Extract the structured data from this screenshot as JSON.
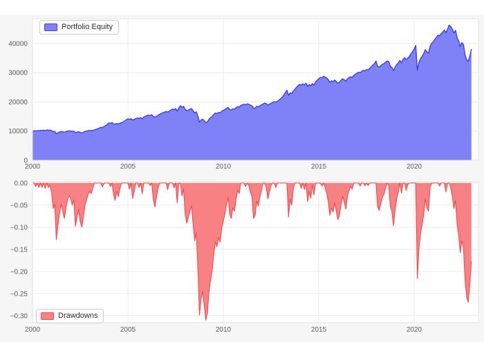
{
  "style": {
    "page_background": "#ffffff",
    "figure_background": "#f6f6f6",
    "plot_background": "#ffffff",
    "grid_color": "#e9e9e9",
    "plot_border_color": "#e3e3e3",
    "tick_label_color": "#5a5a5a"
  },
  "chart_data": [
    {
      "id": "equity",
      "type": "area",
      "title": "",
      "xlabel": "",
      "ylabel": "",
      "legend_label": "Portfolio Equity",
      "legend_position": "top_left",
      "grid": true,
      "line_color": "#3c3fe3",
      "fill_color": "#7f81f7",
      "baseline": 0,
      "x_start": 2000,
      "x_step": 0.0833333,
      "x_range": [
        2000,
        2023.37
      ],
      "y_range": [
        0,
        48500
      ],
      "x_ticks": [
        {
          "v": 2000,
          "label": "2000"
        },
        {
          "v": 2005,
          "label": "2005"
        },
        {
          "v": 2010,
          "label": "2010"
        },
        {
          "v": 2015,
          "label": "2015"
        },
        {
          "v": 2020,
          "label": "2020"
        }
      ],
      "y_ticks": [
        {
          "v": 0,
          "label": "0"
        },
        {
          "v": 10000,
          "label": "10000"
        },
        {
          "v": 20000,
          "label": "20000"
        },
        {
          "v": 30000,
          "label": "30000"
        },
        {
          "v": 40000,
          "label": "40000"
        }
      ],
      "values": [
        10000,
        10120,
        10040,
        10180,
        10080,
        10250,
        10150,
        10320,
        10200,
        10400,
        10300,
        10350,
        10180,
        9800,
        9900,
        9070,
        9400,
        9680,
        9900,
        9750,
        9570,
        9800,
        10000,
        10100,
        10050,
        9880,
        10000,
        9380,
        9600,
        9780,
        9500,
        9360,
        9600,
        9880,
        10000,
        10140,
        10200,
        10150,
        10300,
        10420,
        10600,
        10800,
        11050,
        11300,
        11200,
        11600,
        11900,
        12250,
        12800,
        12700,
        12850,
        12500,
        12350,
        12600,
        12450,
        12700,
        12900,
        13100,
        13500,
        13900,
        14200,
        14000,
        14250,
        13750,
        14000,
        14300,
        14500,
        14350,
        14600,
        14250,
        14800,
        15100,
        15300,
        15450,
        15350,
        15600,
        15000,
        14750,
        15100,
        15450,
        15750,
        16050,
        16300,
        16500,
        16750,
        16500,
        16850,
        17200,
        17550,
        17350,
        17700,
        16900,
        17900,
        18700,
        18150,
        18450,
        17400,
        17000,
        17250,
        17500,
        17750,
        16950,
        16250,
        16600,
        15100,
        13100,
        13800,
        14100,
        13500,
        12900,
        13200,
        14100,
        14600,
        15000,
        15700,
        16200,
        16000,
        16400,
        16200,
        16800,
        17100,
        17400,
        17800,
        18100,
        17400,
        17200,
        17650,
        17500,
        18000,
        18400,
        18250,
        18800,
        19000,
        19200,
        19050,
        19300,
        19200,
        18900,
        18700,
        17750,
        17900,
        18500,
        18300,
        18700,
        19000,
        19300,
        19600,
        19400,
        18900,
        19200,
        19500,
        19800,
        20100,
        19900,
        20200,
        20600,
        21100,
        21600,
        22300,
        23200,
        24000,
        22150,
        23100,
        22800,
        23700,
        24300,
        25000,
        25600,
        26000,
        25700,
        26200,
        25800,
        26400,
        25300,
        25900,
        25500,
        26300,
        25700,
        26800,
        27400,
        27900,
        28400,
        28200,
        28800,
        28500,
        28100,
        27600,
        26700,
        27200,
        26900,
        27500,
        27000,
        26400,
        26700,
        27400,
        27900,
        27600,
        27100,
        27900,
        28300,
        28600,
        28400,
        29000,
        29500,
        29800,
        30200,
        30000,
        30400,
        30800,
        30600,
        31100,
        30900,
        31500,
        32000,
        32600,
        33100,
        34000,
        32200,
        31900,
        32400,
        32900,
        33100,
        33600,
        34000,
        33800,
        32200,
        31800,
        30700,
        31900,
        32800,
        33300,
        34200,
        33400,
        34600,
        35100,
        34500,
        35000,
        35600,
        36500,
        37200,
        38100,
        39300,
        30800,
        33500,
        34800,
        35600,
        36500,
        37900,
        37100,
        36800,
        38900,
        40100,
        40600,
        41400,
        42100,
        42900,
        42600,
        43400,
        43900,
        44600,
        43700,
        44900,
        46300,
        45800,
        44900,
        43600,
        44500,
        42000,
        40800,
        39000,
        40300,
        39600,
        36100,
        34400,
        33800,
        35700,
        38100
      ]
    },
    {
      "id": "drawdowns",
      "type": "area",
      "title": "",
      "xlabel": "",
      "ylabel": "",
      "legend_label": "Drawdowns",
      "legend_position": "bottom_left",
      "grid": true,
      "line_color": "#f4494b",
      "fill_color": "#f88183",
      "baseline": 0,
      "max_drawdown": -0.31,
      "x_start": 2000,
      "x_step": 0.0833333,
      "x_range": [
        2000,
        2023.37
      ],
      "y_range": [
        -0.316,
        0.003
      ],
      "x_ticks": [
        {
          "v": 2000,
          "label": "2000"
        },
        {
          "v": 2005,
          "label": "2005"
        },
        {
          "v": 2010,
          "label": "2010"
        },
        {
          "v": 2015,
          "label": "2015"
        },
        {
          "v": 2020,
          "label": "2020"
        }
      ],
      "y_ticks": [
        {
          "v": 0,
          "label": "0.00"
        },
        {
          "v": -0.05,
          "label": "−0.05"
        },
        {
          "v": -0.1,
          "label": "−0.10"
        },
        {
          "v": -0.15,
          "label": "−0.15"
        },
        {
          "v": -0.2,
          "label": "−0.20"
        },
        {
          "v": -0.25,
          "label": "−0.25"
        },
        {
          "v": -0.3,
          "label": "−0.30"
        }
      ],
      "values": [
        0,
        0,
        -0.008,
        0,
        -0.01,
        0,
        -0.01,
        0,
        -0.012,
        0,
        -0.01,
        -0.005,
        -0.021,
        -0.058,
        -0.048,
        -0.128,
        -0.096,
        -0.069,
        -0.048,
        -0.063,
        -0.08,
        -0.058,
        -0.038,
        -0.029,
        -0.034,
        -0.05,
        -0.038,
        -0.098,
        -0.077,
        -0.06,
        -0.087,
        -0.1,
        -0.077,
        -0.05,
        -0.038,
        -0.025,
        -0.019,
        -0.024,
        -0.01,
        0,
        0,
        0,
        0,
        0,
        -0.009,
        0,
        0,
        0,
        0,
        -0.008,
        0,
        -0.027,
        -0.039,
        -0.019,
        -0.031,
        -0.012,
        0,
        0,
        0,
        0,
        0,
        -0.014,
        0,
        -0.035,
        -0.018,
        0,
        0,
        -0.01,
        0,
        -0.024,
        0,
        0,
        0,
        0,
        -0.006,
        0,
        -0.038,
        -0.054,
        -0.032,
        -0.01,
        0,
        0,
        0,
        0,
        0,
        -0.015,
        0,
        0,
        0,
        -0.011,
        0,
        -0.045,
        0,
        0,
        -0.029,
        -0.013,
        -0.07,
        -0.091,
        -0.078,
        -0.064,
        -0.051,
        -0.094,
        -0.131,
        -0.112,
        -0.193,
        -0.299,
        -0.262,
        -0.246,
        -0.278,
        -0.31,
        -0.294,
        -0.246,
        -0.219,
        -0.198,
        -0.16,
        -0.134,
        -0.144,
        -0.123,
        -0.134,
        -0.102,
        -0.086,
        -0.07,
        -0.048,
        -0.032,
        -0.07,
        -0.08,
        -0.056,
        -0.064,
        -0.037,
        -0.016,
        -0.024,
        0,
        0,
        0,
        -0.008,
        0,
        -0.005,
        -0.021,
        -0.031,
        -0.08,
        -0.073,
        -0.041,
        -0.052,
        -0.031,
        -0.016,
        0,
        0,
        -0.01,
        -0.036,
        -0.02,
        -0.005,
        0,
        0,
        -0.01,
        0,
        0,
        0,
        0,
        0,
        0,
        0,
        -0.077,
        -0.037,
        -0.05,
        -0.013,
        0,
        0,
        0,
        0,
        -0.012,
        0,
        -0.015,
        0,
        -0.042,
        -0.019,
        -0.034,
        -0.004,
        -0.027,
        0,
        0,
        0,
        0,
        -0.007,
        0,
        -0.01,
        -0.024,
        -0.042,
        -0.073,
        -0.056,
        -0.066,
        -0.045,
        -0.063,
        -0.083,
        -0.073,
        -0.049,
        -0.031,
        -0.042,
        -0.059,
        -0.031,
        -0.017,
        -0.007,
        -0.014,
        0,
        0,
        0,
        0,
        -0.007,
        0,
        0,
        -0.006,
        0,
        -0.006,
        0,
        0,
        0,
        0,
        0,
        -0.053,
        -0.062,
        -0.047,
        -0.032,
        -0.026,
        -0.012,
        0,
        -0.006,
        -0.053,
        -0.065,
        -0.097,
        -0.062,
        -0.035,
        -0.021,
        0,
        -0.023,
        0,
        0,
        -0.017,
        -0.003,
        0,
        0,
        0,
        0,
        0,
        -0.216,
        -0.148,
        -0.114,
        -0.094,
        -0.071,
        -0.036,
        -0.056,
        -0.064,
        -0.01,
        0,
        0,
        0,
        0,
        0,
        -0.007,
        0,
        0,
        0,
        -0.02,
        0,
        0,
        -0.011,
        -0.03,
        -0.058,
        -0.039,
        -0.093,
        -0.119,
        -0.158,
        -0.13,
        -0.145,
        -0.22,
        -0.257,
        -0.27,
        -0.229,
        -0.177
      ]
    }
  ]
}
